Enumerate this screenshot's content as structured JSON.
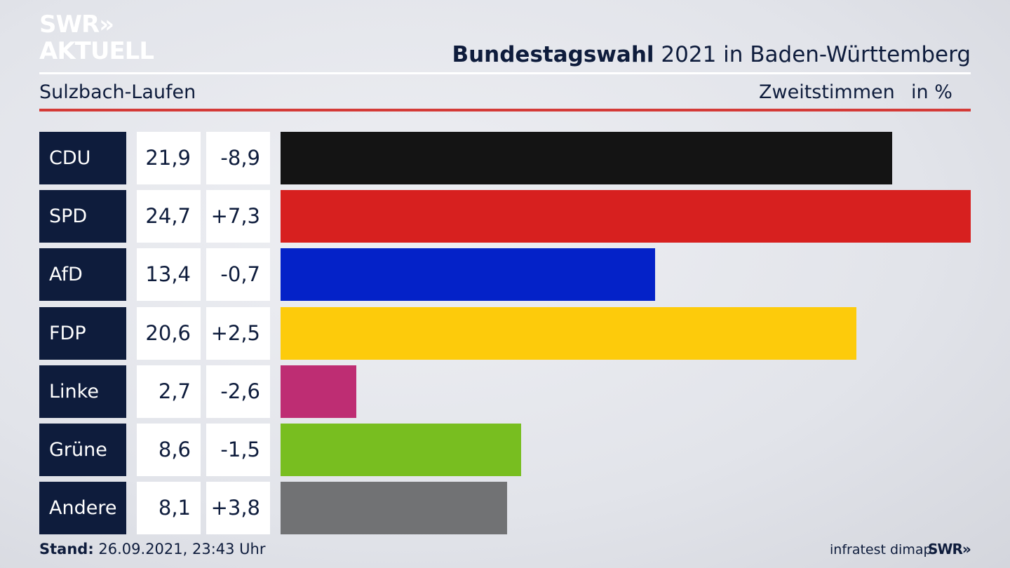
{
  "brand": {
    "logo_line1": "SWR»",
    "logo_line2": "AKTUELL",
    "footer_logo": "SWR»"
  },
  "header": {
    "title_bold": "Bundestagswahl",
    "title_rest": " 2021 in Baden-Württemberg",
    "region": "Sulzbach-Laufen",
    "metric": "Zweitstimmen",
    "unit": "in %"
  },
  "footer": {
    "stand_label": "Stand:",
    "stand_value": " 26.09.2021, 23:43 Uhr",
    "source": "infratest dimap"
  },
  "colors": {
    "navy": "#0e1c3c",
    "accent_red": "#d43a37"
  },
  "chart_data": {
    "type": "bar",
    "orientation": "horizontal",
    "xlim": [
      0,
      24.7
    ],
    "categories": [
      "CDU",
      "SPD",
      "AfD",
      "FDP",
      "Linke",
      "Grüne",
      "Andere"
    ],
    "values": [
      21.9,
      24.7,
      13.4,
      20.6,
      2.7,
      8.6,
      8.1
    ],
    "value_labels": [
      "21,9",
      "24,7",
      "13,4",
      "20,6",
      "2,7",
      "8,6",
      "8,1"
    ],
    "change_labels": [
      "-8,9",
      "+7,3",
      "-0,7",
      "+2,5",
      "-2,6",
      "-1,5",
      "+3,8"
    ],
    "bar_colors": [
      "#141414",
      "#d7201f",
      "#0422c8",
      "#fdcb0b",
      "#be2d73",
      "#78be20",
      "#717274"
    ]
  }
}
